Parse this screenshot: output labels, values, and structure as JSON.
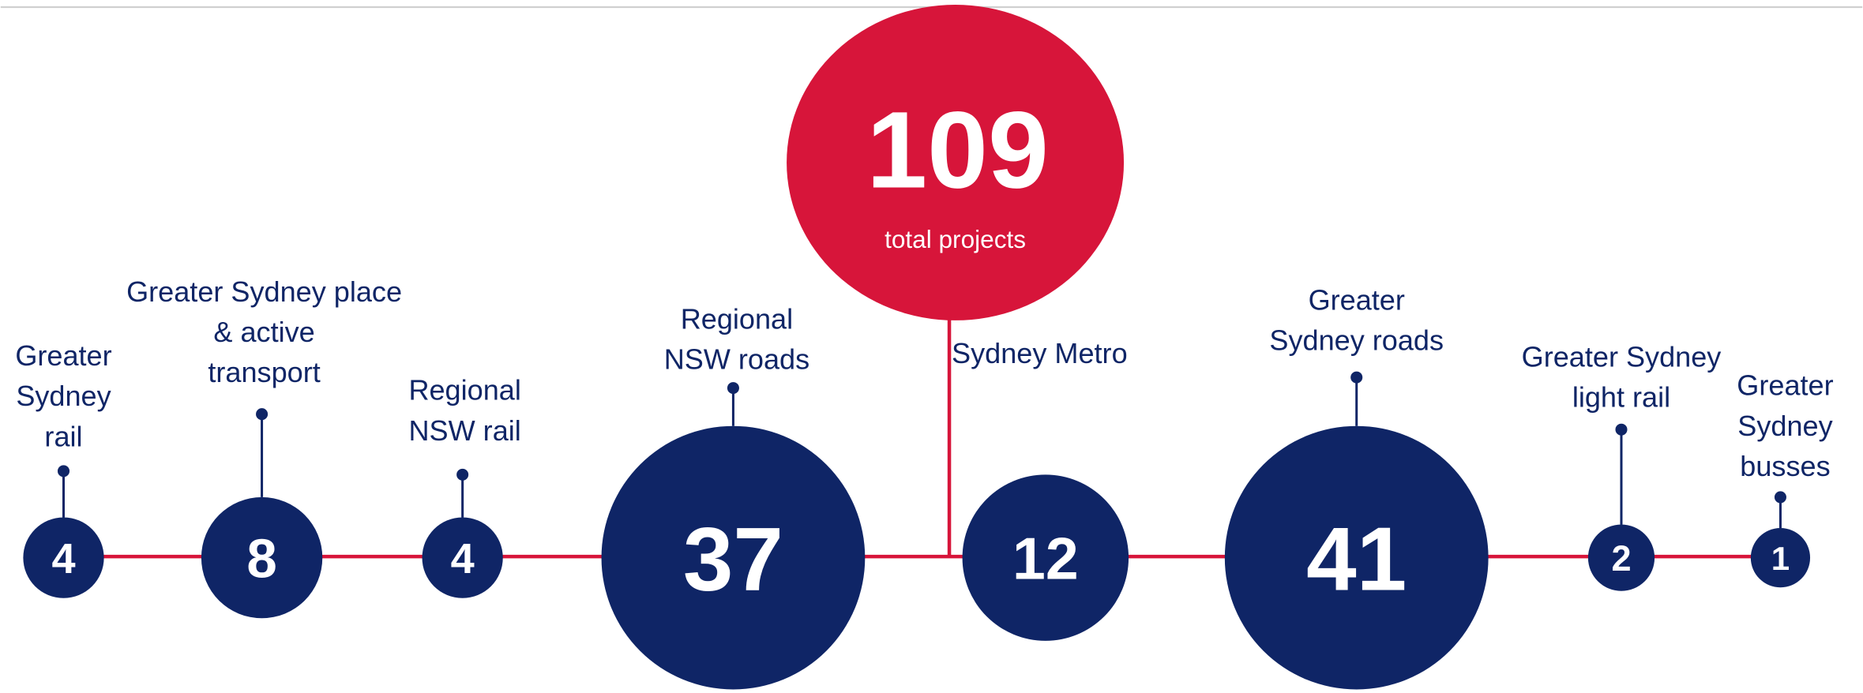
{
  "total": {
    "value": 109,
    "caption": "total projects"
  },
  "nodes": [
    {
      "label": [
        "Greater",
        "Sydney",
        "rail"
      ],
      "value": 4
    },
    {
      "label": [
        "Greater Sydney place",
        "& active",
        "transport"
      ],
      "value": 8
    },
    {
      "label": [
        "Regional",
        "NSW rail"
      ],
      "value": 4
    },
    {
      "label": [
        "Regional",
        "NSW roads"
      ],
      "value": 37
    },
    {
      "label": [
        "Sydney Metro"
      ],
      "value": 12
    },
    {
      "label": [
        "Greater",
        "Sydney roads"
      ],
      "value": 41
    },
    {
      "label": [
        "Greater Sydney",
        "light rail"
      ],
      "value": 2
    },
    {
      "label": [
        "Greater",
        "Sydney",
        "busses"
      ],
      "value": 1
    }
  ]
}
